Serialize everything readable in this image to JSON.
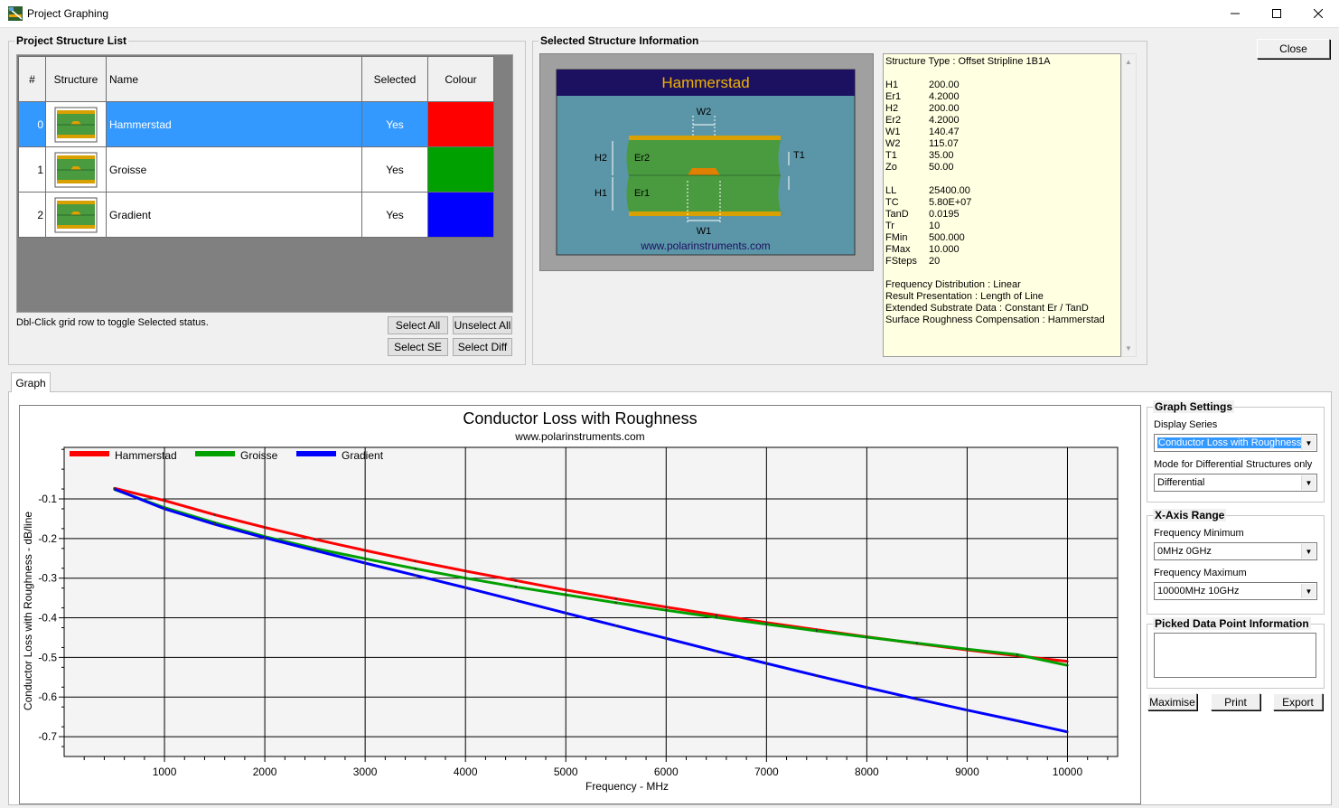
{
  "window": {
    "title": "Project Graphing"
  },
  "structure_list": {
    "title": "Project Structure List",
    "columns": [
      "#",
      "Structure",
      "Name",
      "Selected",
      "Colour"
    ],
    "rows": [
      {
        "index": "0",
        "name": "Hammerstad",
        "selected": "Yes",
        "colour": "#ff0000"
      },
      {
        "index": "1",
        "name": "Groisse",
        "selected": "Yes",
        "colour": "#00a000"
      },
      {
        "index": "2",
        "name": "Gradient",
        "selected": "Yes",
        "colour": "#0000ff"
      }
    ],
    "hint": "Dbl-Click grid row to toggle Selected status.",
    "select_all": "Select All",
    "unselect_all": "Unselect All",
    "select_se": "Select SE",
    "select_diff": "Select Diff"
  },
  "selected_info": {
    "title": "Selected Structure Information",
    "diagram": {
      "name": "Hammerstad",
      "website": "www.polarinstruments.com",
      "labels": {
        "w2": "W2",
        "t1": "T1",
        "h2": "H2",
        "er2": "Er2",
        "h1": "H1",
        "er1": "Er1",
        "w1": "W1"
      }
    },
    "structure_type": "Structure Type :  Offset Stripline 1B1A",
    "params1": [
      {
        "k": "H1",
        "v": "200.00"
      },
      {
        "k": "Er1",
        "v": "4.2000"
      },
      {
        "k": "H2",
        "v": "200.00"
      },
      {
        "k": "Er2",
        "v": "4.2000"
      },
      {
        "k": "W1",
        "v": "140.47"
      },
      {
        "k": "W2",
        "v": "115.07"
      },
      {
        "k": "T1",
        "v": "35.00"
      },
      {
        "k": "Zo",
        "v": "50.00"
      }
    ],
    "params2": [
      {
        "k": "LL",
        "v": "25400.00"
      },
      {
        "k": "TC",
        "v": "5.80E+07"
      },
      {
        "k": "TanD",
        "v": "0.0195"
      },
      {
        "k": "Tr",
        "v": "10"
      },
      {
        "k": "FMin",
        "v": "500.000"
      },
      {
        "k": "FMax",
        "v": "10.000"
      },
      {
        "k": "FSteps",
        "v": "20"
      }
    ],
    "notes": [
      "Frequency Distribution :  Linear",
      "Result Presentation :  Length of Line",
      "Extended Substrate Data :  Constant Er / TanD",
      "Surface Roughness Compensation :  Hammerstad"
    ]
  },
  "close_button": "Close",
  "tabs": {
    "graph": "Graph"
  },
  "graph_settings": {
    "title": "Graph Settings",
    "display_series_label": "Display Series",
    "display_series_value": "Conductor Loss with Roughness",
    "mode_label": "Mode for Differential Structures only",
    "mode_value": "Differential"
  },
  "x_axis_range": {
    "title": "X-Axis Range",
    "min_label": "Frequency Minimum",
    "min_value": "0MHz  0GHz",
    "max_label": "Frequency Maximum",
    "max_value": "10000MHz  10GHz"
  },
  "picked_info": {
    "title": "Picked Data Point Information",
    "value": ""
  },
  "buttons": {
    "maximise": "Maximise",
    "print": "Print",
    "export": "Export"
  },
  "chart_data": {
    "type": "line",
    "title": "Conductor Loss with Roughness",
    "subtitle": "www.polarinstruments.com",
    "xlabel": "Frequency - MHz",
    "ylabel": "Conductor Loss with Roughness - dB/line",
    "xlim": [
      0,
      10500
    ],
    "ylim": [
      -0.75,
      0.03
    ],
    "x_ticks": [
      1000,
      2000,
      3000,
      4000,
      5000,
      6000,
      7000,
      8000,
      9000,
      10000
    ],
    "y_ticks": [
      -0.1,
      -0.2,
      -0.3,
      -0.4,
      -0.5,
      -0.6,
      -0.7
    ],
    "y_tick_labels": [
      "-0.1",
      "-0.2",
      "-0.3",
      "-0.4",
      "-0.5",
      "-0.6",
      "-0.7"
    ],
    "grid": true,
    "legend": "top-left",
    "x": [
      500,
      1000,
      1500,
      2000,
      2500,
      3000,
      3500,
      4000,
      4500,
      5000,
      5500,
      6000,
      6500,
      7000,
      7500,
      8000,
      8500,
      9000,
      9500,
      10000
    ],
    "series": [
      {
        "name": "Hammerstad",
        "color": "#ff0000",
        "values": [
          -0.073,
          -0.104,
          -0.14,
          -0.172,
          -0.202,
          -0.23,
          -0.257,
          -0.282,
          -0.306,
          -0.33,
          -0.352,
          -0.373,
          -0.393,
          -0.412,
          -0.43,
          -0.448,
          -0.465,
          -0.481,
          -0.496,
          -0.51
        ]
      },
      {
        "name": "Groisse",
        "color": "#00a000",
        "values": [
          -0.076,
          -0.122,
          -0.16,
          -0.195,
          -0.225,
          -0.251,
          -0.276,
          -0.3,
          -0.322,
          -0.342,
          -0.362,
          -0.381,
          -0.399,
          -0.416,
          -0.433,
          -0.449,
          -0.464,
          -0.479,
          -0.493,
          -0.52
        ]
      },
      {
        "name": "Gradient",
        "color": "#0000ff",
        "values": [
          -0.075,
          -0.125,
          -0.164,
          -0.198,
          -0.23,
          -0.262,
          -0.293,
          -0.324,
          -0.356,
          -0.388,
          -0.42,
          -0.452,
          -0.484,
          -0.515,
          -0.546,
          -0.576,
          -0.605,
          -0.633,
          -0.66,
          -0.688
        ]
      }
    ]
  }
}
